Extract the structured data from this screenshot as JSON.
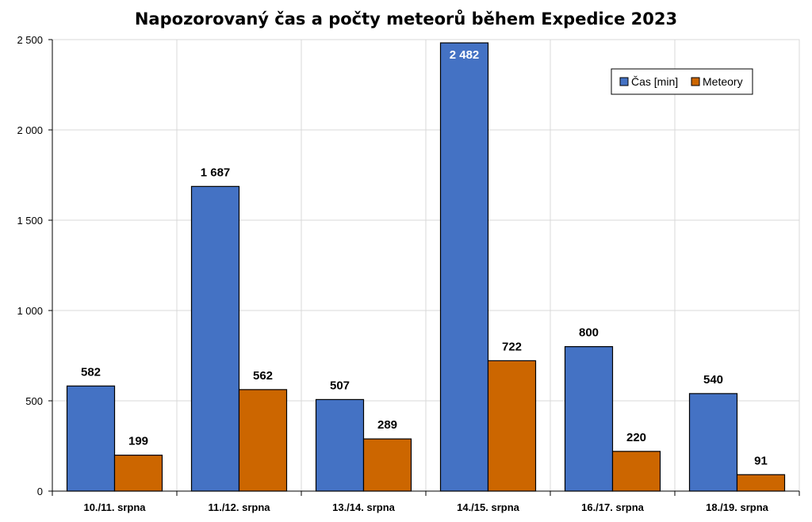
{
  "chart_data": {
    "type": "bar",
    "title": "Napozorovaný čas a počty meteorů během Expedice 2023",
    "xlabel": "",
    "ylabel": "",
    "categories": [
      "10./11. srpna",
      "11./12. srpna",
      "13./14. srpna",
      "14./15. srpna",
      "16./17. srpna",
      "18./19. srpna"
    ],
    "series": [
      {
        "name": "Čas [min]",
        "values": [
          582,
          1687,
          507,
          2482,
          800,
          540
        ],
        "labels": [
          "582",
          "1 687",
          "507",
          "2 482",
          "800",
          "540"
        ],
        "color": "#4472C4"
      },
      {
        "name": "Meteory",
        "values": [
          199,
          562,
          289,
          722,
          220,
          91
        ],
        "labels": [
          "199",
          "562",
          "289",
          "722",
          "220",
          "91"
        ],
        "color": "#CC6600"
      }
    ],
    "ylim": [
      0,
      2500
    ],
    "yticks": [
      0,
      500,
      1000,
      1500,
      2000,
      2500
    ],
    "ytick_labels": [
      "0",
      "500",
      "1 000",
      "1 500",
      "2 000",
      "2 500"
    ],
    "grid": true,
    "legend": "top-right"
  }
}
